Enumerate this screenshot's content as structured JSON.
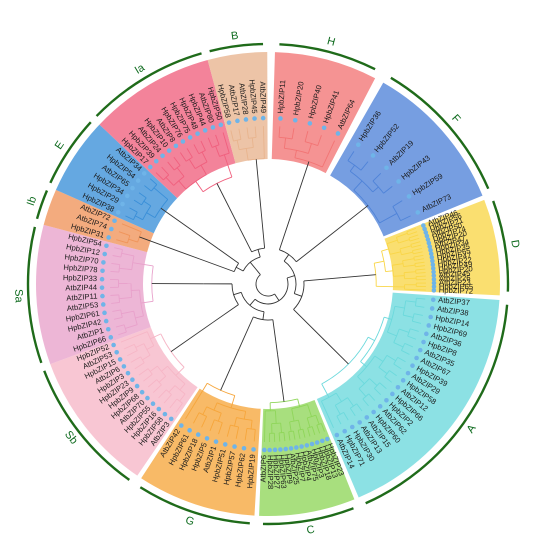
{
  "tree": {
    "outer_arc_color": "#1f6b1a",
    "marker_color": "#6fb4e8",
    "branch_neutral_color": "#333333",
    "groups": [
      {
        "id": "H",
        "label": "H",
        "color": "#f27474",
        "leaves": [
          "HpbZIP11",
          "HpbZIP20",
          "HpbZIP40",
          "HpbZIP41",
          "AtbZIP64"
        ]
      },
      {
        "id": "F",
        "label": "F",
        "color": "#4f83d8",
        "leaves": [
          "HpbZIP36",
          "HpbZIP52",
          "AtbZIP19",
          "HpbZIP43",
          "HpbZIP59",
          "AtbZIP73"
        ]
      },
      {
        "id": "D",
        "label": "D",
        "color": "#f9d648",
        "leaves": [
          "AtbZIP46",
          "HpbZIP56",
          "HpbZIP21",
          "AtbZIP50",
          "HpbZIP74",
          "HpbZIP20",
          "AtbZIP47",
          "HpbZIP34",
          "HpbZIP35",
          "HpbZIP65",
          "HpbZIP47",
          "HpbZIP22",
          "HpbZIP49",
          "HpbZIP20",
          "AtbZIP45",
          "AtbZIP26",
          "AtbZIP23",
          "HpbZIP65",
          "HpbZIP72"
        ]
      },
      {
        "id": "A",
        "label": "A",
        "color": "#6cd9dc",
        "leaves": [
          "AtbZIP37",
          "AtbZIP38",
          "HpbZIP14",
          "HpbZIP69",
          "AtbZIP36",
          "HpbZIP8",
          "AtbZIP35",
          "AtbZIP67",
          "HpbZIP39",
          "AtbZIP29",
          "HpbZIP58",
          "AtbZIP12",
          "HpbZIP66",
          "HpbZIP2",
          "AtbZIP62",
          "HpbZIP60",
          "AtbZIP15",
          "AtbZIP13",
          "HpbZIP30",
          "HpbZIP71",
          "AtbZIP14"
        ]
      },
      {
        "id": "C",
        "label": "C",
        "color": "#8fd65a",
        "leaves": [
          "HpbZIP23",
          "HpbZIP13",
          "HpbZIP18",
          "HpbZIP3",
          "AtbZIP75",
          "HpbZIP4",
          "HpbZIP7",
          "AtbZIP25",
          "HpbZIP9",
          "HpbZIP63",
          "HpbZIP27",
          "HpbZIP28",
          "AtbZIP6"
        ]
      },
      {
        "id": "G",
        "label": "G",
        "color": "#f6a63c",
        "leaves": [
          "HpbZIP19",
          "HpbZIP62",
          "HpbZIP57",
          "HpbZIP51",
          "AtbZIP1",
          "HpbZIP5",
          "HpbZIP18",
          "HpbZIP61",
          "AtbZIP42"
        ]
      },
      {
        "id": "Sb",
        "label": "Sb",
        "color": "#f6b6c6",
        "leaves": [
          "AtbZIP3",
          "HpbZIP58",
          "HpbZIP16",
          "HpbZIP55",
          "AtbZIP70",
          "HpbZIP68",
          "HpbZIP9",
          "HpbZIP23",
          "HpbZIP3",
          "AtbZIP6",
          "HpbZIP15",
          "AtbZIP53",
          "HpbZIP52"
        ]
      },
      {
        "id": "Sa",
        "label": "Sa",
        "color": "#e8a1cb",
        "leaves": [
          "HpbZIP66",
          "AtbZIP1",
          "HpbZIP42",
          "HpbZIP61",
          "AtbZIP53",
          "AtbZIP11",
          "AtbZIP44",
          "HpbZIP33",
          "HpbZIP78",
          "HpbZIP70",
          "HpbZIP12",
          "HpbZIP54"
        ]
      },
      {
        "id": "Ib",
        "label": "Ib",
        "color": "#f0945a",
        "leaves": [
          "HpbZIP31",
          "AtbZIP74",
          "AtbZIP72"
        ]
      },
      {
        "id": "E",
        "label": "E",
        "color": "#3a8fd8",
        "leaves": [
          "HpbZIP38",
          "HpbZIP29",
          "HpbZIP34",
          "AtbZIP65",
          "HpbZIP54",
          "AtbZIP34"
        ]
      },
      {
        "id": "Ia",
        "label": "Ia",
        "color": "#f0607e",
        "leaves": [
          "HpbZIP17",
          "HpbZIP39",
          "AtbZIP24",
          "HpbZIP10",
          "AtbZIP8",
          "HpbZIP76",
          "HpbZIP75",
          "HpbZIP48",
          "HpbZIP44",
          "AtbZIP80",
          "HpbZIP50"
        ]
      },
      {
        "id": "B",
        "label": "B",
        "color": "#e8b48e",
        "leaves": [
          "HpbZIP58",
          "AtbZIP17",
          "AtbZIP28",
          "HpbZIP45",
          "AtbZIP49"
        ]
      }
    ]
  }
}
